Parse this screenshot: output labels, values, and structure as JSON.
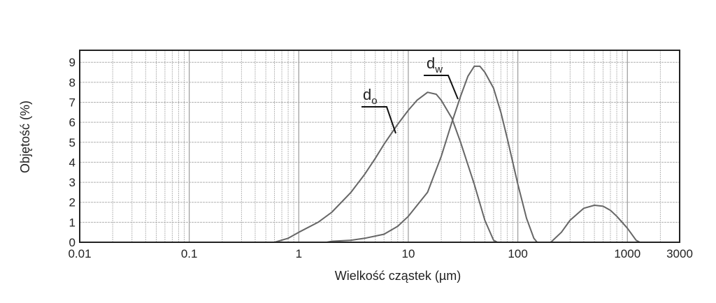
{
  "chart_data": {
    "type": "line",
    "title": "",
    "xlabel": "Wielkość cząstek (µm)",
    "ylabel": "Objętość (%)",
    "x_scale": "log",
    "xlim": [
      0.01,
      3000
    ],
    "ylim": [
      0,
      9.6
    ],
    "x_ticks": [
      {
        "value": 0.01,
        "label": "0.01"
      },
      {
        "value": 0.1,
        "label": "0.1"
      },
      {
        "value": 1,
        "label": "1"
      },
      {
        "value": 10,
        "label": "10"
      },
      {
        "value": 100,
        "label": "100"
      },
      {
        "value": 1000,
        "label": "1000"
      },
      {
        "value": 3000,
        "label": "3000"
      }
    ],
    "y_ticks": [
      0,
      1,
      2,
      3,
      4,
      5,
      6,
      7,
      8,
      9
    ],
    "grid": true,
    "line_color": "#666666",
    "series": [
      {
        "name": "d",
        "subscript": "o",
        "x": [
          0.6,
          0.8,
          1,
          1.5,
          2,
          3,
          4,
          5,
          6,
          8,
          10,
          12,
          15,
          18,
          20,
          25,
          30,
          40,
          50,
          60,
          65
        ],
        "y": [
          0,
          0.2,
          0.5,
          1.0,
          1.5,
          2.5,
          3.4,
          4.2,
          4.9,
          5.9,
          6.6,
          7.1,
          7.5,
          7.4,
          7.1,
          6.2,
          5.0,
          2.9,
          1.1,
          0.1,
          0
        ]
      },
      {
        "name": "d",
        "subscript": "w",
        "x": [
          1.8,
          2,
          3,
          4,
          6,
          8,
          10,
          15,
          20,
          25,
          30,
          35,
          40,
          45,
          50,
          60,
          70,
          80,
          100,
          120,
          140,
          150,
          200,
          250,
          300,
          400,
          500,
          600,
          700,
          800,
          1000,
          1200,
          1300
        ],
        "y": [
          0,
          0.05,
          0.1,
          0.2,
          0.4,
          0.8,
          1.3,
          2.5,
          4.3,
          6.0,
          7.3,
          8.3,
          8.8,
          8.8,
          8.5,
          7.7,
          6.5,
          5.2,
          2.9,
          1.2,
          0.2,
          0,
          0,
          0.5,
          1.1,
          1.7,
          1.85,
          1.8,
          1.6,
          1.3,
          0.7,
          0.1,
          0
        ]
      }
    ]
  }
}
